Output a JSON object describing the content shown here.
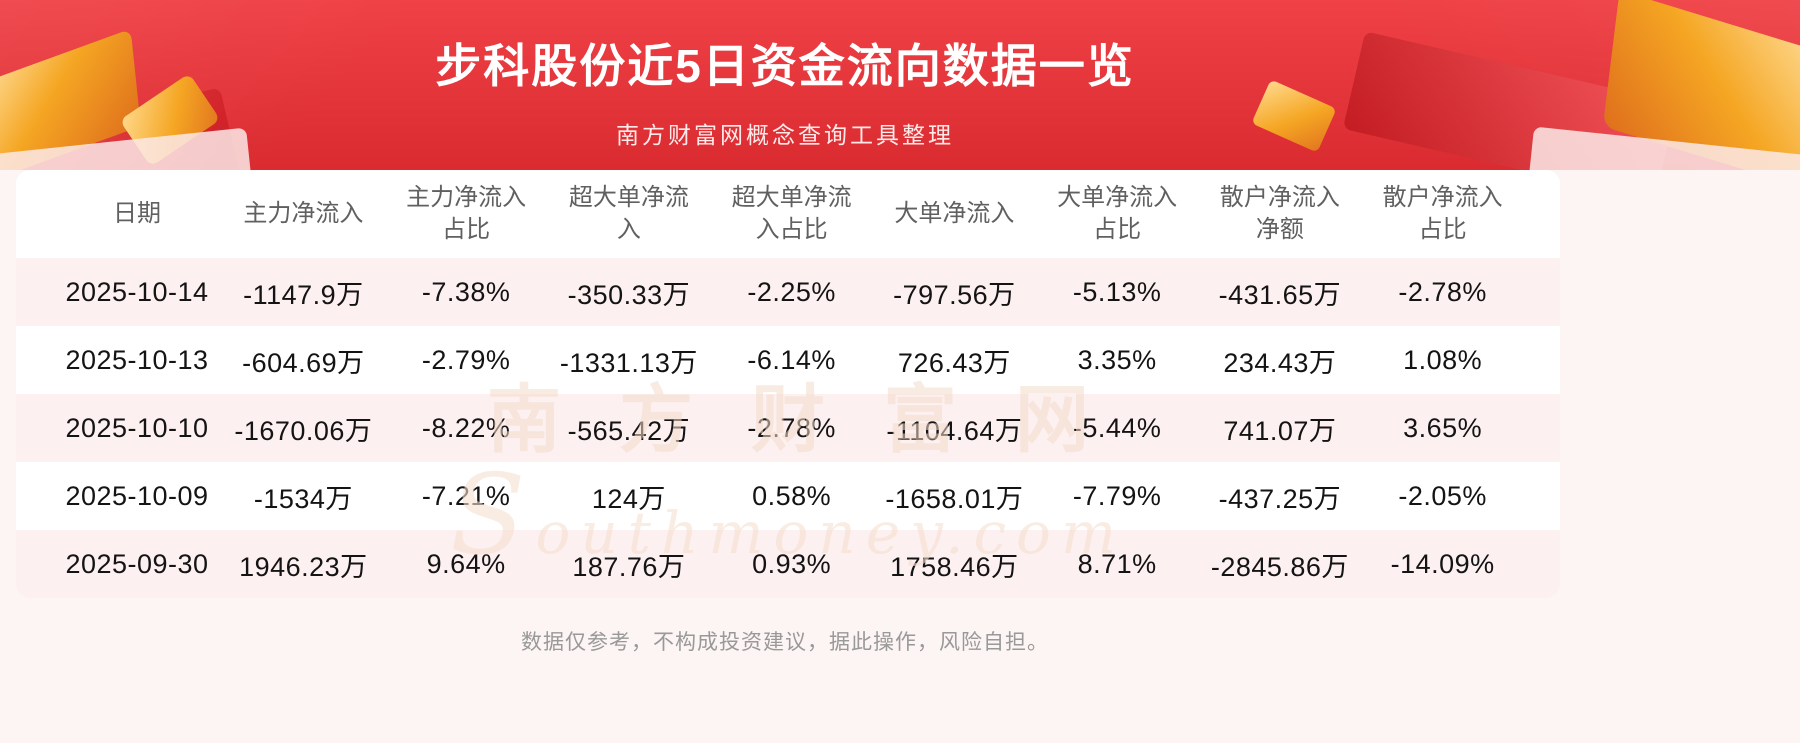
{
  "page": {
    "title": "步科股份近5日资金流向数据一览",
    "subtitle": "南方财富网概念查询工具整理",
    "footer": "数据仅参考，不构成投资建议，据此操作，风险自担。",
    "watermark_cn": "南方财富网",
    "watermark_en": "Southmoney.com"
  },
  "colors": {
    "header_red": "#ef4146",
    "header_red_dark": "#d92b30",
    "gold": "#f5a623",
    "body_bg": "#fdf4f4",
    "row_pink": "#fdf0f1",
    "header_text": "#606060",
    "cell_text": "#141414",
    "footer_text": "#999999"
  },
  "table": {
    "columns": [
      "日期",
      "主力净流入",
      "主力净流入\n占比",
      "超大单净流\n入",
      "超大单净流\n入占比",
      "大单净流入",
      "大单净流入\n占比",
      "散户净流入\n净额",
      "散户净流入\n占比"
    ],
    "rows": [
      [
        "2025-10-14",
        "-1147.9万",
        "-7.38%",
        "-350.33万",
        "-2.25%",
        "-797.56万",
        "-5.13%",
        "-431.65万",
        "-2.78%"
      ],
      [
        "2025-10-13",
        "-604.69万",
        "-2.79%",
        "-1331.13万",
        "-6.14%",
        "726.43万",
        "3.35%",
        "234.43万",
        "1.08%"
      ],
      [
        "2025-10-10",
        "-1670.06万",
        "-8.22%",
        "-565.42万",
        "-2.78%",
        "-1104.64万",
        "-5.44%",
        "741.07万",
        "3.65%"
      ],
      [
        "2025-10-09",
        "-1534万",
        "-7.21%",
        "124万",
        "0.58%",
        "-1658.01万",
        "-7.79%",
        "-437.25万",
        "-2.05%"
      ],
      [
        "2025-09-30",
        "1946.23万",
        "9.64%",
        "187.76万",
        "0.93%",
        "1758.46万",
        "8.71%",
        "-2845.86万",
        "-14.09%"
      ]
    ]
  },
  "chart_data": {
    "type": "table",
    "title": "步科股份近5日资金流向数据一览",
    "subtitle": "南方财富网概念查询工具整理",
    "columns": [
      "日期",
      "主力净流入",
      "主力净流入占比",
      "超大单净流入",
      "超大单净流入占比",
      "大单净流入",
      "大单净流入占比",
      "散户净流入净额",
      "散户净流入占比"
    ],
    "rows": [
      [
        "2025-10-14",
        "-1147.9万",
        "-7.38%",
        "-350.33万",
        "-2.25%",
        "-797.56万",
        "-5.13%",
        "-431.65万",
        "-2.78%"
      ],
      [
        "2025-10-13",
        "-604.69万",
        "-2.79%",
        "-1331.13万",
        "-6.14%",
        "726.43万",
        "3.35%",
        "234.43万",
        "1.08%"
      ],
      [
        "2025-10-10",
        "-1670.06万",
        "-8.22%",
        "-565.42万",
        "-2.78%",
        "-1104.64万",
        "-5.44%",
        "741.07万",
        "3.65%"
      ],
      [
        "2025-10-09",
        "-1534万",
        "-7.21%",
        "124万",
        "0.58%",
        "-1658.01万",
        "-7.79%",
        "-437.25万",
        "-2.05%"
      ],
      [
        "2025-09-30",
        "1946.23万",
        "9.64%",
        "187.76万",
        "0.93%",
        "1758.46万",
        "8.71%",
        "-2845.86万",
        "-14.09%"
      ]
    ],
    "notes": "数据仅参考，不构成投资建议，据此操作，风险自担。"
  }
}
